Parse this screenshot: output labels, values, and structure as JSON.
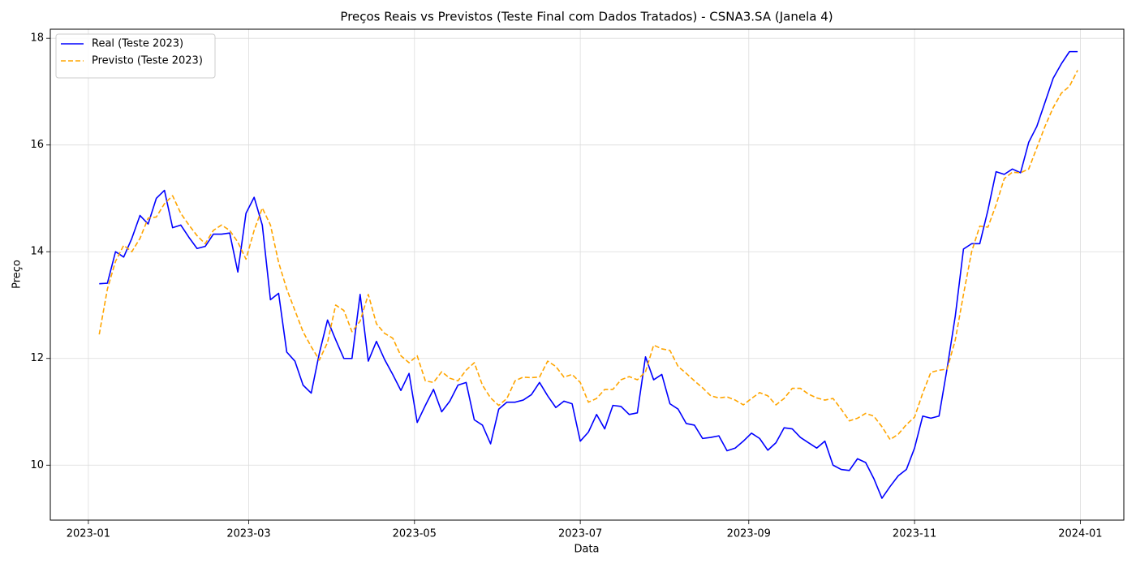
{
  "chart_data": {
    "type": "line",
    "title": "Preços Reais vs Previstos (Teste Final com Dados Tratados) - CSNA3.SA (Janela 4)",
    "x_label": "Data",
    "y_label": "Preço",
    "x": [
      "2023-01-05",
      "2023-01-08",
      "2023-01-11",
      "2023-01-14",
      "2023-01-17",
      "2023-01-20",
      "2023-01-23",
      "2023-01-26",
      "2023-01-29",
      "2023-02-01",
      "2023-02-04",
      "2023-02-07",
      "2023-02-10",
      "2023-02-13",
      "2023-02-16",
      "2023-02-19",
      "2023-02-22",
      "2023-02-25",
      "2023-02-28",
      "2023-03-03",
      "2023-03-06",
      "2023-03-09",
      "2023-03-12",
      "2023-03-15",
      "2023-03-18",
      "2023-03-21",
      "2023-03-24",
      "2023-03-27",
      "2023-03-30",
      "2023-04-02",
      "2023-04-05",
      "2023-04-08",
      "2023-04-11",
      "2023-04-14",
      "2023-04-17",
      "2023-04-20",
      "2023-04-23",
      "2023-04-26",
      "2023-04-29",
      "2023-05-02",
      "2023-05-05",
      "2023-05-08",
      "2023-05-11",
      "2023-05-14",
      "2023-05-17",
      "2023-05-20",
      "2023-05-23",
      "2023-05-26",
      "2023-05-29",
      "2023-06-01",
      "2023-06-04",
      "2023-06-07",
      "2023-06-10",
      "2023-06-13",
      "2023-06-16",
      "2023-06-19",
      "2023-06-22",
      "2023-06-25",
      "2023-06-28",
      "2023-07-01",
      "2023-07-04",
      "2023-07-07",
      "2023-07-10",
      "2023-07-13",
      "2023-07-16",
      "2023-07-19",
      "2023-07-22",
      "2023-07-25",
      "2023-07-28",
      "2023-07-31",
      "2023-08-03",
      "2023-08-06",
      "2023-08-09",
      "2023-08-12",
      "2023-08-15",
      "2023-08-18",
      "2023-08-21",
      "2023-08-24",
      "2023-08-27",
      "2023-08-30",
      "2023-09-02",
      "2023-09-05",
      "2023-09-08",
      "2023-09-11",
      "2023-09-14",
      "2023-09-17",
      "2023-09-20",
      "2023-09-23",
      "2023-09-26",
      "2023-09-29",
      "2023-10-02",
      "2023-10-05",
      "2023-10-08",
      "2023-10-11",
      "2023-10-14",
      "2023-10-17",
      "2023-10-20",
      "2023-10-23",
      "2023-10-26",
      "2023-10-29",
      "2023-11-01",
      "2023-11-04",
      "2023-11-07",
      "2023-11-10",
      "2023-11-13",
      "2023-11-16",
      "2023-11-19",
      "2023-11-22",
      "2023-11-25",
      "2023-11-28",
      "2023-12-01",
      "2023-12-04",
      "2023-12-07",
      "2023-12-10",
      "2023-12-13",
      "2023-12-16",
      "2023-12-19",
      "2023-12-22",
      "2023-12-25",
      "2023-12-28",
      "2023-12-31"
    ],
    "series": [
      {
        "name": "Real (Teste 2023)",
        "color": "#0000ff",
        "dash": false,
        "values": [
          13.4,
          13.41,
          14.0,
          13.9,
          14.25,
          14.68,
          14.52,
          15.0,
          15.15,
          14.45,
          14.5,
          14.27,
          14.06,
          14.1,
          14.33,
          14.33,
          14.35,
          13.62,
          14.72,
          15.02,
          14.5,
          13.1,
          13.22,
          12.12,
          11.95,
          11.5,
          11.35,
          12.1,
          12.72,
          12.35,
          12.0,
          12.0,
          13.2,
          11.95,
          12.32,
          11.98,
          11.7,
          11.4,
          11.72,
          10.8,
          11.12,
          11.42,
          11.0,
          11.2,
          11.5,
          11.55,
          10.85,
          10.75,
          10.4,
          11.05,
          11.18,
          11.18,
          11.22,
          11.32,
          11.55,
          11.3,
          11.08,
          11.2,
          11.15,
          10.45,
          10.62,
          10.95,
          10.68,
          11.12,
          11.1,
          10.95,
          10.98,
          12.03,
          11.6,
          11.7,
          11.15,
          11.05,
          10.78,
          10.75,
          10.5,
          10.52,
          10.55,
          10.27,
          10.32,
          10.45,
          10.6,
          10.5,
          10.28,
          10.42,
          10.7,
          10.68,
          10.52,
          10.42,
          10.32,
          10.45,
          10.0,
          9.92,
          9.9,
          10.12,
          10.05,
          9.75,
          9.38,
          9.6,
          9.8,
          9.92,
          10.32,
          10.92,
          10.88,
          10.92,
          11.82,
          12.8,
          14.05,
          14.15,
          14.15,
          14.78,
          15.5,
          15.45,
          15.55,
          15.48,
          16.05,
          16.35,
          16.8,
          17.25,
          17.52,
          17.75,
          17.75
        ]
      },
      {
        "name": "Previsto (Teste 2023)",
        "color": "#ffa500",
        "dash": true,
        "values": [
          12.45,
          13.3,
          13.82,
          14.12,
          14.0,
          14.25,
          14.63,
          14.65,
          14.9,
          15.05,
          14.72,
          14.5,
          14.3,
          14.15,
          14.4,
          14.5,
          14.4,
          14.18,
          13.86,
          14.4,
          14.82,
          14.5,
          13.8,
          13.3,
          12.9,
          12.5,
          12.22,
          11.97,
          12.3,
          13.0,
          12.9,
          12.5,
          12.7,
          13.2,
          12.65,
          12.47,
          12.38,
          12.05,
          11.92,
          12.05,
          11.58,
          11.55,
          11.75,
          11.63,
          11.58,
          11.78,
          11.92,
          11.5,
          11.26,
          11.12,
          11.25,
          11.58,
          11.65,
          11.64,
          11.65,
          11.95,
          11.85,
          11.65,
          11.7,
          11.55,
          11.18,
          11.25,
          11.42,
          11.42,
          11.6,
          11.66,
          11.6,
          11.75,
          12.25,
          12.18,
          12.15,
          11.85,
          11.72,
          11.58,
          11.45,
          11.3,
          11.26,
          11.28,
          11.22,
          11.13,
          11.25,
          11.36,
          11.3,
          11.13,
          11.25,
          11.44,
          11.44,
          11.33,
          11.26,
          11.22,
          11.25,
          11.05,
          10.83,
          10.88,
          10.97,
          10.92,
          10.72,
          10.48,
          10.58,
          10.76,
          10.9,
          11.35,
          11.74,
          11.78,
          11.8,
          12.35,
          13.2,
          14.0,
          14.48,
          14.46,
          14.88,
          15.37,
          15.49,
          15.48,
          15.55,
          15.95,
          16.35,
          16.7,
          16.97,
          17.1,
          17.4
        ]
      }
    ],
    "xlim": [
      "2022-12-18",
      "2024-01-17"
    ],
    "xticks": [
      {
        "value": "2023-01-01",
        "label": "2023-01"
      },
      {
        "value": "2023-03-01",
        "label": "2023-03"
      },
      {
        "value": "2023-05-01",
        "label": "2023-05"
      },
      {
        "value": "2023-07-01",
        "label": "2023-07"
      },
      {
        "value": "2023-09-01",
        "label": "2023-09"
      },
      {
        "value": "2023-11-01",
        "label": "2023-11"
      },
      {
        "value": "2024-01-01",
        "label": "2024-01"
      }
    ],
    "ylim": [
      8.97,
      18.17
    ],
    "yticks": [
      10,
      12,
      14,
      16,
      18
    ],
    "grid": true,
    "legend": "upper left"
  }
}
